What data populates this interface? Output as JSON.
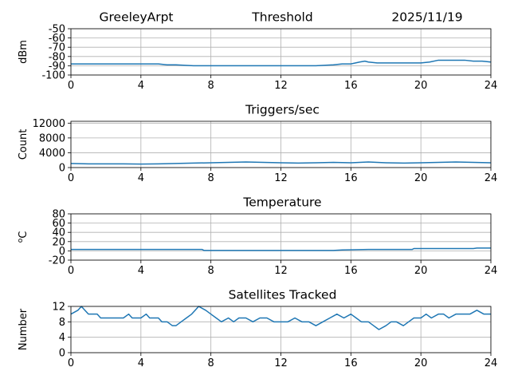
{
  "header": {
    "station": "GreeleyArpt",
    "date": "2025/11/19"
  },
  "colors": {
    "line": "#1f77b4",
    "grid": "#b0b0b0",
    "axis": "#000000"
  },
  "chart_data": [
    {
      "type": "line",
      "title": "Threshold",
      "xlabel": "",
      "ylabel": "dBm",
      "xlim": [
        0,
        24
      ],
      "ylim": [
        -100,
        -50
      ],
      "xticks": [
        0,
        4,
        8,
        12,
        16,
        20,
        24
      ],
      "yticks": [
        -100,
        -90,
        -80,
        -70,
        -60,
        -50
      ],
      "grid": true,
      "x": [
        0,
        1,
        2,
        3,
        4,
        5,
        5.5,
        6,
        7,
        8,
        9,
        10,
        11,
        12,
        13,
        14,
        15,
        15.5,
        16,
        16.5,
        16.8,
        17,
        17.5,
        18,
        19,
        20,
        20.5,
        21,
        21.5,
        22,
        22.5,
        23,
        23.5,
        24
      ],
      "y": [
        -88,
        -88,
        -88,
        -88,
        -88,
        -88,
        -89,
        -89,
        -90,
        -90,
        -90,
        -90,
        -90,
        -90,
        -90,
        -90,
        -89,
        -88,
        -88,
        -86,
        -85,
        -86,
        -87,
        -87,
        -87,
        -87,
        -86,
        -84,
        -84,
        -84,
        -84,
        -85,
        -85,
        -86
      ]
    },
    {
      "type": "line",
      "title": "Triggers/sec",
      "xlabel": "",
      "ylabel": "Count",
      "xlim": [
        0,
        24
      ],
      "ylim": [
        0,
        12500
      ],
      "xticks": [
        0,
        4,
        8,
        12,
        16,
        20,
        24
      ],
      "yticks": [
        0,
        4000,
        8000,
        12000
      ],
      "grid": true,
      "x": [
        0,
        1,
        2,
        3,
        4,
        5,
        6,
        7,
        8,
        9,
        10,
        11,
        12,
        13,
        14,
        15,
        16,
        17,
        18,
        19,
        20,
        21,
        22,
        23,
        24
      ],
      "y": [
        1100,
        1000,
        1000,
        1000,
        950,
        1000,
        1100,
        1200,
        1300,
        1400,
        1500,
        1400,
        1300,
        1200,
        1300,
        1400,
        1300,
        1500,
        1300,
        1200,
        1300,
        1400,
        1500,
        1400,
        1300
      ]
    },
    {
      "type": "line",
      "title": "Temperature",
      "xlabel": "",
      "ylabel": "oC",
      "xlim": [
        0,
        24
      ],
      "ylim": [
        -20,
        80
      ],
      "xticks": [
        0,
        4,
        8,
        12,
        16,
        20,
        24
      ],
      "yticks": [
        -20,
        0,
        20,
        40,
        60,
        80
      ],
      "grid": true,
      "x": [
        0,
        3,
        5,
        7.5,
        7.6,
        10,
        12,
        15,
        15.5,
        17,
        19.5,
        19.6,
        23,
        23.2,
        24
      ],
      "y": [
        3,
        3,
        3,
        3,
        1,
        1,
        1,
        1,
        2,
        3,
        3,
        5,
        5,
        6,
        6
      ]
    },
    {
      "type": "line",
      "title": "Satellites Tracked",
      "xlabel": "",
      "ylabel": "Number",
      "xlim": [
        0,
        24
      ],
      "ylim": [
        0,
        12
      ],
      "xticks": [
        0,
        4,
        8,
        12,
        16,
        20,
        24
      ],
      "yticks": [
        0,
        4,
        8,
        12
      ],
      "grid": true,
      "x": [
        0,
        0.4,
        0.6,
        0.8,
        1.0,
        1.5,
        1.7,
        2.0,
        3.0,
        3.3,
        3.5,
        4.0,
        4.3,
        4.5,
        5.0,
        5.2,
        5.5,
        5.8,
        6.0,
        6.3,
        6.6,
        6.9,
        7.1,
        7.3,
        7.7,
        8.0,
        8.3,
        8.6,
        9.0,
        9.3,
        9.6,
        10.0,
        10.4,
        10.8,
        11.2,
        11.6,
        12.0,
        12.4,
        12.8,
        13.2,
        13.6,
        14.0,
        14.4,
        14.8,
        15.2,
        15.6,
        16.0,
        16.3,
        16.6,
        17.0,
        17.3,
        17.6,
        18.0,
        18.3,
        18.6,
        19.0,
        19.3,
        19.6,
        20.0,
        20.3,
        20.6,
        21.0,
        21.3,
        21.6,
        22.0,
        22.4,
        22.8,
        23.2,
        23.6,
        24.0
      ],
      "y": [
        10,
        11,
        12,
        11,
        10,
        10,
        9,
        9,
        9,
        10,
        9,
        9,
        10,
        9,
        9,
        8,
        8,
        7,
        7,
        8,
        9,
        10,
        11,
        12,
        11,
        10,
        9,
        8,
        9,
        8,
        9,
        9,
        8,
        9,
        9,
        8,
        8,
        8,
        9,
        8,
        8,
        7,
        8,
        9,
        10,
        9,
        10,
        9,
        8,
        8,
        7,
        6,
        7,
        8,
        8,
        7,
        8,
        9,
        9,
        10,
        9,
        10,
        10,
        9,
        10,
        10,
        10,
        11,
        10,
        10
      ]
    }
  ]
}
